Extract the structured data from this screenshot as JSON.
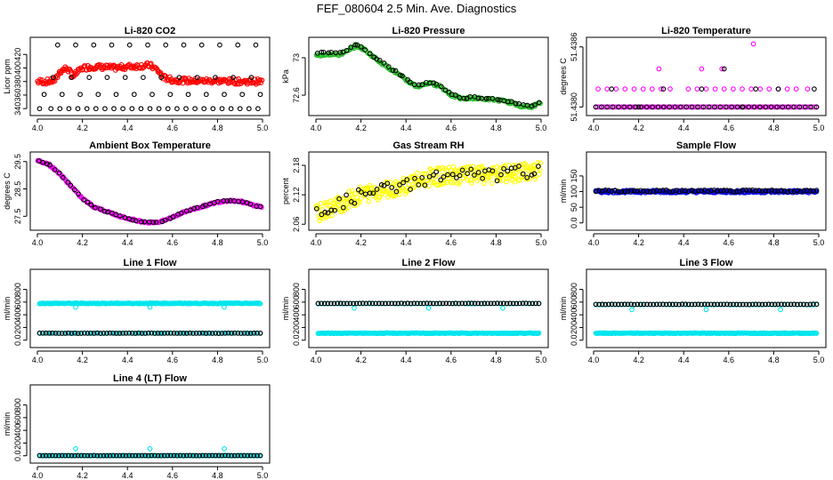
{
  "title": "FEF_080604  2.5 Min. Ave. Diagnostics",
  "colors": {
    "black": "#000000",
    "red": "#ff0000",
    "green": "#22bb22",
    "magenta": "#ff00ff",
    "yellow": "#ffff00",
    "blue": "#0000dd",
    "cyan": "#00e5ee"
  },
  "chart_data": [
    {
      "type": "scatter",
      "title": "Li-820 CO2",
      "ylabel": "Licor ppm",
      "xlim": [
        4.0,
        5.0
      ],
      "ylim": [
        335,
        440
      ],
      "xticks": [
        4.0,
        4.2,
        4.4,
        4.6,
        4.8,
        5.0
      ],
      "yticks": [
        340,
        360,
        380,
        400,
        420
      ],
      "series": [
        {
          "color": "red",
          "kind": "curve",
          "x": [
            4.0,
            4.05,
            4.08,
            4.1,
            4.13,
            4.16,
            4.2,
            4.25,
            4.3,
            4.35,
            4.4,
            4.45,
            4.5,
            4.53,
            4.56,
            4.6,
            4.7,
            4.8,
            4.9,
            5.0
          ],
          "y": [
            380,
            380,
            382,
            395,
            400,
            388,
            400,
            402,
            401,
            400,
            402,
            403,
            404,
            398,
            386,
            382,
            381,
            381,
            380,
            380
          ],
          "count": 260,
          "jitter": 4
        },
        {
          "color": "black",
          "kind": "points",
          "x": [
            4.01,
            4.06,
            4.1,
            4.14,
            4.18,
            4.22,
            4.26,
            4.3,
            4.34,
            4.38,
            4.42,
            4.46,
            4.5,
            4.54,
            4.58,
            4.62,
            4.66,
            4.7,
            4.74,
            4.78,
            4.82,
            4.86,
            4.9,
            4.94,
            4.98,
            4.03,
            4.11,
            4.19,
            4.27,
            4.35,
            4.43,
            4.51,
            4.59,
            4.67,
            4.75,
            4.83,
            4.91,
            4.99,
            4.07,
            4.15,
            4.23,
            4.31,
            4.39,
            4.47,
            4.55,
            4.63,
            4.71,
            4.79,
            4.87,
            4.95,
            4.09,
            4.17,
            4.25,
            4.33,
            4.41,
            4.49,
            4.57,
            4.65,
            4.73,
            4.81,
            4.89,
            4.97
          ],
          "y": [
            340,
            340,
            340,
            340,
            340,
            340,
            340,
            340,
            340,
            340,
            340,
            340,
            340,
            340,
            340,
            340,
            340,
            340,
            340,
            340,
            340,
            340,
            340,
            340,
            340,
            361,
            361,
            361,
            361,
            361,
            361,
            361,
            361,
            361,
            361,
            361,
            361,
            361,
            386,
            386,
            386,
            386,
            386,
            386,
            386,
            386,
            386,
            386,
            386,
            386,
            434,
            434,
            434,
            434,
            434,
            434,
            434,
            434,
            434,
            434,
            434,
            434
          ]
        }
      ]
    },
    {
      "type": "scatter",
      "title": "Li-820 Pressure",
      "ylabel": "kPa",
      "xlim": [
        4.0,
        5.0
      ],
      "ylim": [
        72.42,
        73.18
      ],
      "xticks": [
        4.0,
        4.2,
        4.4,
        4.6,
        4.8,
        5.0
      ],
      "yticks": [
        72.6,
        73.0
      ],
      "series": [
        {
          "color": "green",
          "kind": "curve",
          "x": [
            4.0,
            4.05,
            4.1,
            4.15,
            4.18,
            4.22,
            4.26,
            4.3,
            4.35,
            4.4,
            4.45,
            4.5,
            4.55,
            4.6,
            4.65,
            4.7,
            4.75,
            4.8,
            4.85,
            4.9,
            4.95,
            5.0
          ],
          "y": [
            73.02,
            73.04,
            73.03,
            73.08,
            73.13,
            73.08,
            73.0,
            72.93,
            72.85,
            72.76,
            72.69,
            72.73,
            72.7,
            72.6,
            72.56,
            72.57,
            72.56,
            72.55,
            72.53,
            72.49,
            72.47,
            72.52
          ],
          "count": 180,
          "jitter": 0.012
        },
        {
          "color": "black",
          "kind": "curve",
          "x": [
            4.0,
            4.05,
            4.1,
            4.15,
            4.18,
            4.22,
            4.26,
            4.3,
            4.35,
            4.4,
            4.45,
            4.5,
            4.55,
            4.6,
            4.65,
            4.7,
            4.75,
            4.8,
            4.85,
            4.9,
            4.95,
            5.0
          ],
          "y": [
            73.04,
            73.06,
            73.05,
            73.1,
            73.14,
            73.09,
            73.01,
            72.94,
            72.86,
            72.77,
            72.7,
            72.74,
            72.71,
            72.61,
            72.57,
            72.58,
            72.57,
            72.56,
            72.54,
            72.5,
            72.48,
            72.53
          ],
          "count": 60,
          "jitter": 0.01
        }
      ]
    },
    {
      "type": "scatter",
      "title": "Li-820 Temperature",
      "ylabel": "degrees C",
      "xlim": [
        4.0,
        5.0
      ],
      "ylim": [
        51.43795,
        51.43866
      ],
      "xticks": [
        4.0,
        4.2,
        4.4,
        4.6,
        4.8,
        5.0
      ],
      "yticks": [
        51.438,
        51.4386
      ],
      "ytick_labels": [
        "51.4380",
        "51.4386"
      ],
      "series": [
        {
          "color": "magenta",
          "kind": "points",
          "x": [
            4.02,
            4.06,
            4.1,
            4.14,
            4.18,
            4.22,
            4.26,
            4.3,
            4.34,
            4.42,
            4.46,
            4.5,
            4.54,
            4.58,
            4.62,
            4.66,
            4.7,
            4.74,
            4.78,
            4.82,
            4.86,
            4.9,
            4.95,
            4.29,
            4.48,
            4.57,
            4.71
          ],
          "y": [
            51.43818,
            51.43818,
            51.43818,
            51.43818,
            51.43818,
            51.43818,
            51.43818,
            51.43818,
            51.43818,
            51.43818,
            51.43818,
            51.43818,
            51.43818,
            51.43818,
            51.43818,
            51.43818,
            51.43818,
            51.43818,
            51.43818,
            51.43818,
            51.43818,
            51.43818,
            51.43818,
            51.43838,
            51.43838,
            51.43838,
            51.43863
          ],
          "band": {
            "y": 51.438,
            "count": 120
          }
        },
        {
          "color": "black",
          "kind": "points",
          "x": [
            4.08,
            4.31,
            4.48,
            4.58,
            4.72,
            4.82,
            4.98,
            4.2,
            4.66
          ],
          "y": [
            51.43818,
            51.43818,
            51.43818,
            51.43838,
            51.43818,
            51.43818,
            51.43818,
            51.438,
            51.438
          ],
          "band": {
            "y": 51.438,
            "count": 40
          }
        }
      ]
    },
    {
      "type": "scatter",
      "title": "Ambient Box Temperature",
      "ylabel": "degrees C",
      "xlim": [
        4.0,
        5.0
      ],
      "ylim": [
        27.12,
        29.72
      ],
      "xticks": [
        4.0,
        4.2,
        4.4,
        4.6,
        4.8,
        5.0
      ],
      "yticks": [
        27.5,
        28.5,
        29.5
      ],
      "series": [
        {
          "color": "magenta",
          "kind": "curve",
          "x": [
            4.0,
            4.05,
            4.1,
            4.15,
            4.2,
            4.25,
            4.3,
            4.35,
            4.4,
            4.45,
            4.5,
            4.55,
            4.6,
            4.65,
            4.7,
            4.75,
            4.8,
            4.85,
            4.9,
            4.95,
            5.0
          ],
          "y": [
            29.55,
            29.4,
            29.05,
            28.6,
            28.15,
            27.85,
            27.7,
            27.55,
            27.42,
            27.33,
            27.27,
            27.3,
            27.47,
            27.65,
            27.78,
            27.9,
            28.02,
            28.08,
            28.05,
            27.93,
            27.83
          ],
          "count": 220,
          "jitter": 0.03
        },
        {
          "color": "black",
          "kind": "curve",
          "x": [
            4.0,
            4.05,
            4.1,
            4.15,
            4.2,
            4.25,
            4.3,
            4.35,
            4.4,
            4.45,
            4.5,
            4.55,
            4.6,
            4.65,
            4.7,
            4.75,
            4.8,
            4.85,
            4.9,
            4.95,
            5.0
          ],
          "y": [
            29.55,
            29.4,
            29.05,
            28.6,
            28.15,
            27.85,
            27.7,
            27.55,
            27.42,
            27.33,
            27.27,
            27.3,
            27.47,
            27.65,
            27.78,
            27.9,
            28.02,
            28.08,
            28.05,
            27.93,
            27.83
          ],
          "count": 55,
          "jitter": 0.02
        }
      ]
    },
    {
      "type": "scatter",
      "title": "Gas Stream RH",
      "ylabel": "percent",
      "xlim": [
        4.0,
        5.0
      ],
      "ylim": [
        2.055,
        2.2
      ],
      "xticks": [
        4.0,
        4.2,
        4.4,
        4.6,
        4.8,
        5.0
      ],
      "yticks": [
        2.06,
        2.12,
        2.18
      ],
      "series": [
        {
          "color": "yellow",
          "kind": "cloud",
          "x": [
            4.0,
            4.1,
            4.2,
            4.3,
            4.4,
            4.5,
            4.6,
            4.7,
            4.8,
            4.9,
            5.0
          ],
          "y": [
            2.08,
            2.1,
            2.12,
            2.13,
            2.14,
            2.155,
            2.16,
            2.16,
            2.16,
            2.165,
            2.17
          ],
          "count": 330,
          "jitter": 0.018
        },
        {
          "color": "black",
          "kind": "cloud",
          "x": [
            4.0,
            4.1,
            4.2,
            4.3,
            4.4,
            4.5,
            4.6,
            4.7,
            4.8,
            4.9,
            5.0
          ],
          "y": [
            2.085,
            2.1,
            2.12,
            2.13,
            2.14,
            2.155,
            2.16,
            2.16,
            2.16,
            2.165,
            2.17
          ],
          "count": 60,
          "jitter": 0.014
        }
      ]
    },
    {
      "type": "scatter",
      "title": "Sample Flow",
      "ylabel": "ml/min",
      "xlim": [
        4.0,
        5.0
      ],
      "ylim": [
        -12,
        215
      ],
      "xticks": [
        4.0,
        4.2,
        4.4,
        4.6,
        4.8,
        5.0
      ],
      "yticks": [
        0,
        50,
        100,
        150
      ],
      "series": [
        {
          "color": "blue",
          "kind": "band",
          "y": 100,
          "count": 260,
          "jitter": 4
        },
        {
          "color": "black",
          "kind": "band",
          "y": 102,
          "count": 70,
          "jitter": 3
        }
      ]
    },
    {
      "type": "scatter",
      "title": "Line 1 Flow",
      "ylabel": "ml/min",
      "xlim": [
        4.0,
        5.0
      ],
      "ylim": [
        -60,
        1060
      ],
      "xticks": [
        4.0,
        4.2,
        4.4,
        4.6,
        4.8,
        5.0
      ],
      "yticks": [
        0,
        200,
        400,
        600,
        800
      ],
      "series": [
        {
          "color": "cyan",
          "kind": "band",
          "y": 580,
          "count": 260,
          "jitter": 6
        },
        {
          "color": "cyan",
          "kind": "band",
          "y": 110,
          "count": 80,
          "jitter": 3
        },
        {
          "color": "cyan",
          "kind": "points",
          "x": [
            4.17,
            4.5,
            4.83
          ],
          "y": [
            520,
            520,
            520
          ]
        },
        {
          "color": "black",
          "kind": "band",
          "y": 110,
          "count": 70,
          "jitter": 3
        }
      ]
    },
    {
      "type": "scatter",
      "title": "Line 2 Flow",
      "ylabel": "ml/min",
      "xlim": [
        4.0,
        5.0
      ],
      "ylim": [
        -60,
        1060
      ],
      "xticks": [
        4.0,
        4.2,
        4.4,
        4.6,
        4.8,
        5.0
      ],
      "yticks": [
        0,
        200,
        400,
        600,
        800
      ],
      "series": [
        {
          "color": "cyan",
          "kind": "band",
          "y": 110,
          "count": 260,
          "jitter": 5
        },
        {
          "color": "cyan",
          "kind": "band",
          "y": 575,
          "count": 70,
          "jitter": 4
        },
        {
          "color": "cyan",
          "kind": "points",
          "x": [
            4.17,
            4.5,
            4.83
          ],
          "y": [
            505,
            505,
            505
          ]
        },
        {
          "color": "black",
          "kind": "band",
          "y": 580,
          "count": 70,
          "jitter": 3
        }
      ]
    },
    {
      "type": "scatter",
      "title": "Line 3 Flow",
      "ylabel": "ml/min",
      "xlim": [
        4.0,
        5.0
      ],
      "ylim": [
        -60,
        1060
      ],
      "xticks": [
        4.0,
        4.2,
        4.4,
        4.6,
        4.8,
        5.0
      ],
      "yticks": [
        0,
        200,
        400,
        600,
        800
      ],
      "series": [
        {
          "color": "cyan",
          "kind": "band",
          "y": 110,
          "count": 260,
          "jitter": 5
        },
        {
          "color": "cyan",
          "kind": "band",
          "y": 560,
          "count": 70,
          "jitter": 4
        },
        {
          "color": "cyan",
          "kind": "points",
          "x": [
            4.17,
            4.5,
            4.83
          ],
          "y": [
            480,
            480,
            480
          ]
        },
        {
          "color": "black",
          "kind": "band",
          "y": 565,
          "count": 70,
          "jitter": 3
        }
      ]
    },
    {
      "type": "scatter",
      "title": "Line 4 (LT) Flow",
      "ylabel": "ml/min",
      "xlim": [
        4.0,
        5.0
      ],
      "ylim": [
        -60,
        1060
      ],
      "xticks": [
        4.0,
        4.2,
        4.4,
        4.6,
        4.8,
        5.0
      ],
      "yticks": [
        0,
        200,
        400,
        600,
        800
      ],
      "series": [
        {
          "color": "cyan",
          "kind": "band",
          "y": 2,
          "count": 150,
          "jitter": 2
        },
        {
          "color": "cyan",
          "kind": "points",
          "x": [
            4.17,
            4.5,
            4.83
          ],
          "y": [
            110,
            110,
            110
          ]
        },
        {
          "color": "black",
          "kind": "band",
          "y": 2,
          "count": 70,
          "jitter": 2
        }
      ]
    }
  ]
}
